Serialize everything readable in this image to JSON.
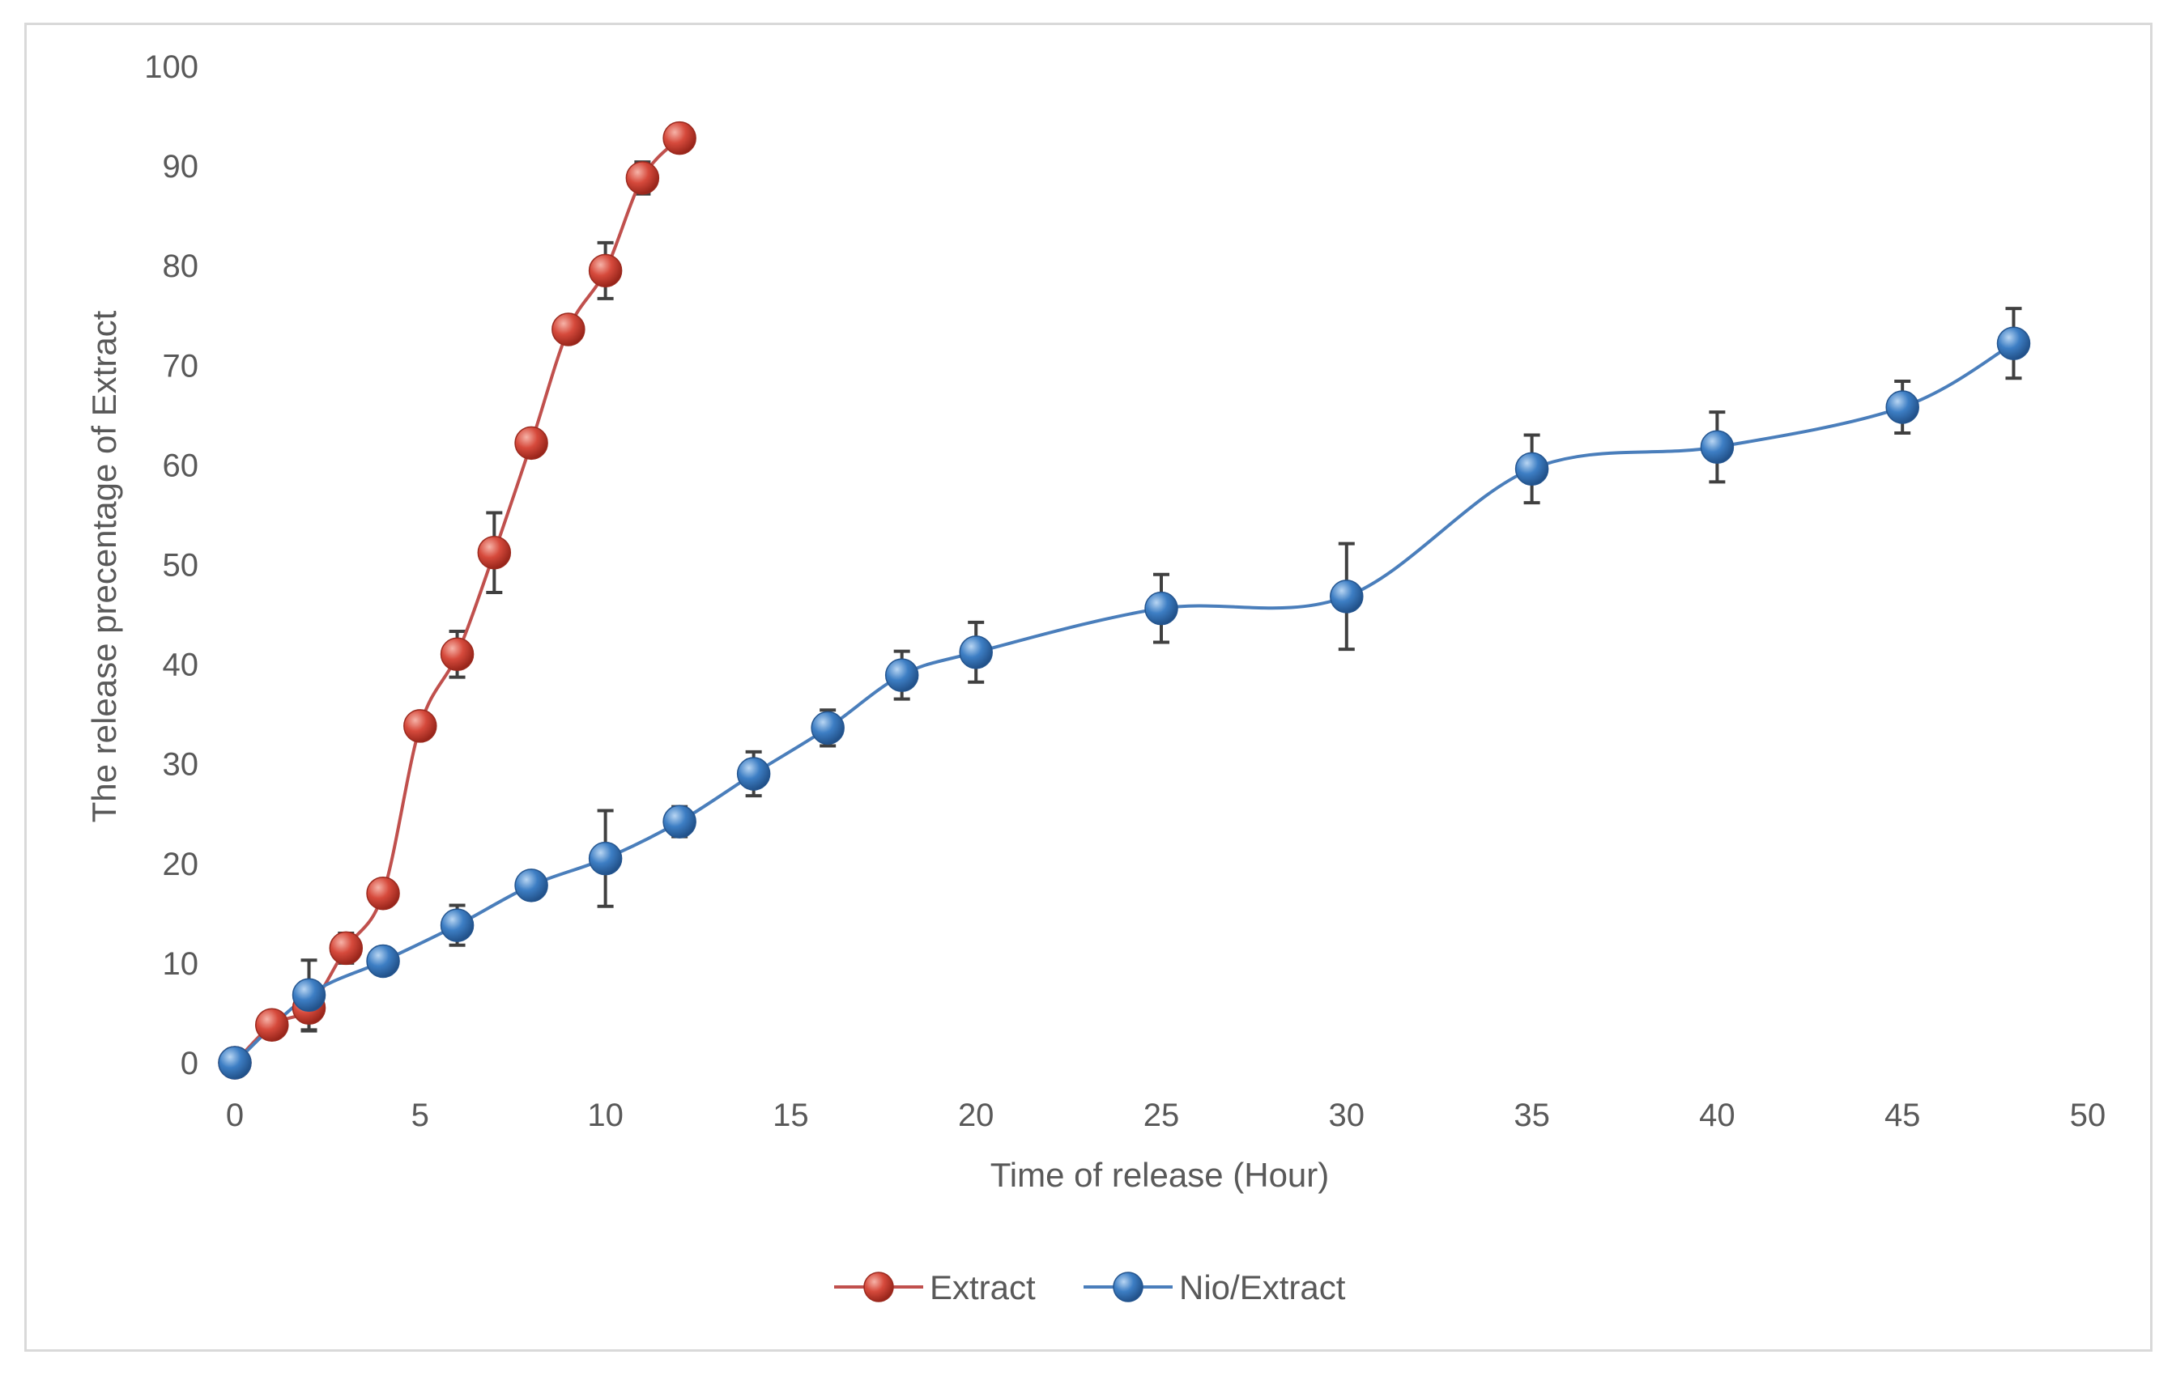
{
  "chart_data": {
    "type": "line",
    "title": "",
    "xlabel": "Time of release (Hour)",
    "ylabel": "The release precentage of Extract",
    "xlim": [
      0,
      50
    ],
    "ylim": [
      0,
      100
    ],
    "x_ticks": [
      "0",
      "5",
      "10",
      "15",
      "20",
      "25",
      "30",
      "35",
      "40",
      "45",
      "50"
    ],
    "y_ticks": [
      "0",
      "10",
      "20",
      "30",
      "40",
      "50",
      "60",
      "70",
      "80",
      "90",
      "100"
    ],
    "grid": false,
    "legend_position": "bottom",
    "series": [
      {
        "name": "Extract",
        "color": "#c0392b",
        "line_color": "#c0504d",
        "points": [
          {
            "x": 0,
            "y": 0,
            "err": 0
          },
          {
            "x": 1,
            "y": 3.8,
            "err": 0
          },
          {
            "x": 2,
            "y": 5.5,
            "err": 2.3
          },
          {
            "x": 3,
            "y": 11.5,
            "err": 1.5
          },
          {
            "x": 4,
            "y": 17.0,
            "err": 0
          },
          {
            "x": 5,
            "y": 33.8,
            "err": 0
          },
          {
            "x": 6,
            "y": 41.0,
            "err": 2.3
          },
          {
            "x": 7,
            "y": 51.2,
            "err": 4.0
          },
          {
            "x": 8,
            "y": 62.2,
            "err": 0
          },
          {
            "x": 9,
            "y": 73.6,
            "err": 0
          },
          {
            "x": 10,
            "y": 79.5,
            "err": 2.8
          },
          {
            "x": 11,
            "y": 88.8,
            "err": 1.6
          },
          {
            "x": 12,
            "y": 92.8,
            "err": 0
          }
        ]
      },
      {
        "name": "Nio/Extract",
        "color": "#2e75b6",
        "line_color": "#4a7ebb",
        "points": [
          {
            "x": 0,
            "y": 0,
            "err": 0
          },
          {
            "x": 2,
            "y": 6.8,
            "err": 3.5
          },
          {
            "x": 4,
            "y": 10.2,
            "err": 0
          },
          {
            "x": 6,
            "y": 13.8,
            "err": 2.0
          },
          {
            "x": 8,
            "y": 17.8,
            "err": 1.3
          },
          {
            "x": 10,
            "y": 20.5,
            "err": 4.8
          },
          {
            "x": 12,
            "y": 24.2,
            "err": 1.5
          },
          {
            "x": 14,
            "y": 29.0,
            "err": 2.2
          },
          {
            "x": 16,
            "y": 33.6,
            "err": 1.8
          },
          {
            "x": 18,
            "y": 38.9,
            "err": 2.4
          },
          {
            "x": 20,
            "y": 41.2,
            "err": 3.0
          },
          {
            "x": 25,
            "y": 45.6,
            "err": 3.4
          },
          {
            "x": 30,
            "y": 46.8,
            "err": 5.3
          },
          {
            "x": 35,
            "y": 59.6,
            "err": 3.4
          },
          {
            "x": 40,
            "y": 61.8,
            "err": 3.5
          },
          {
            "x": 45,
            "y": 65.8,
            "err": 2.6
          },
          {
            "x": 48,
            "y": 72.2,
            "err": 3.5
          }
        ]
      }
    ]
  }
}
